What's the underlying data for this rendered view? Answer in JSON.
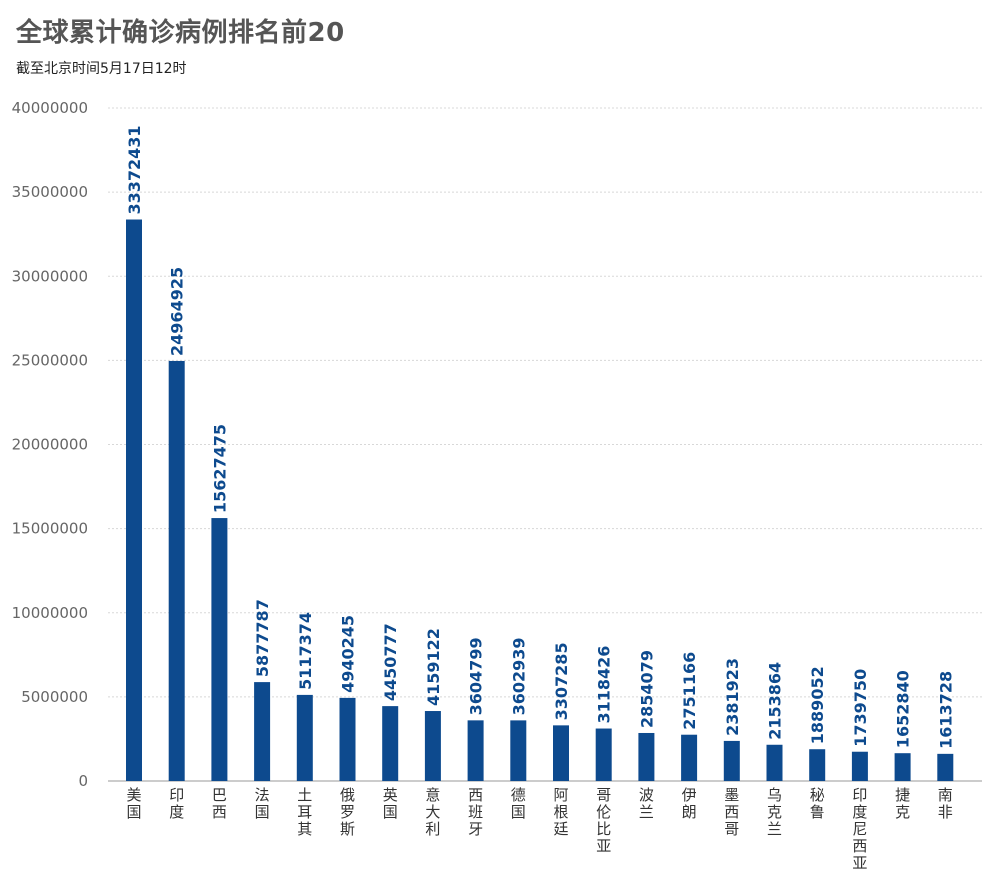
{
  "title": "全球累计确诊病例排名前20",
  "subtitle": "截至北京时间5月17日12时",
  "colors": {
    "bar": "#0d4a8e",
    "label": "#0d4a8e",
    "grid": "#d8d8d8",
    "axis": "#999999"
  },
  "chart_data": {
    "type": "bar",
    "categories": [
      "美国",
      "印度",
      "巴西",
      "法国",
      "土耳其",
      "俄罗斯",
      "英国",
      "意大利",
      "西班牙",
      "德国",
      "阿根廷",
      "哥伦比亚",
      "波兰",
      "伊朗",
      "墨西哥",
      "乌克兰",
      "秘鲁",
      "印度尼西亚",
      "捷克",
      "南非"
    ],
    "values": [
      33372431,
      24964925,
      15627475,
      5877787,
      5117374,
      4940245,
      4450777,
      4159122,
      3604799,
      3602939,
      3307285,
      3118426,
      2854079,
      2751166,
      2381923,
      2153864,
      1889052,
      1739750,
      1652840,
      1613728
    ],
    "yticks": [
      0,
      5000000,
      10000000,
      15000000,
      20000000,
      25000000,
      30000000,
      35000000,
      40000000
    ],
    "ylim": [
      0,
      40000000
    ],
    "grid": true,
    "legend": false
  }
}
